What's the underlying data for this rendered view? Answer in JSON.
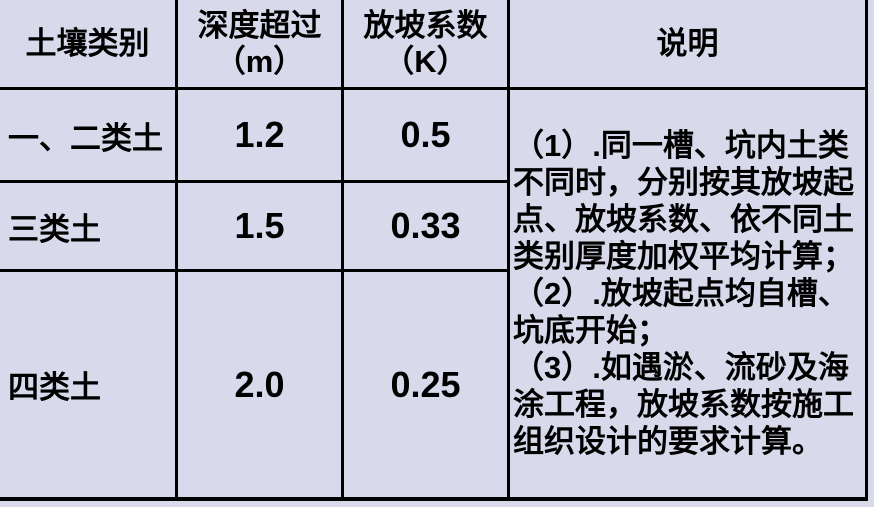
{
  "colors": {
    "cell_background": "#d8d9ea",
    "border": "#000000",
    "text": "#000000"
  },
  "table": {
    "columns": [
      {
        "header": "土壤类别"
      },
      {
        "header": "深度超过",
        "header_unit": "（m）"
      },
      {
        "header": "放坡系数",
        "header_unit": "（K）"
      },
      {
        "header": "说明"
      }
    ],
    "rows": [
      {
        "soil_type": "一、二类土",
        "depth": "1.2",
        "coefficient": "0.5"
      },
      {
        "soil_type": "三类土",
        "depth": "1.5",
        "coefficient": "0.33"
      },
      {
        "soil_type": "四类土",
        "depth": "2.0",
        "coefficient": "0.25"
      }
    ],
    "notes_lines": [
      "（1）.同一槽、坑内土类",
      "不同时，分别按其放坡起",
      "点、放坡系数、依不同土",
      "类别厚度加权平均计算；",
      "（2）.放坡起点均自槽、",
      "坑底开始；",
      "（3）.如遇淤、流砂及海",
      "涂工程，放坡系数按施工",
      "组织设计的要求计算。"
    ]
  }
}
